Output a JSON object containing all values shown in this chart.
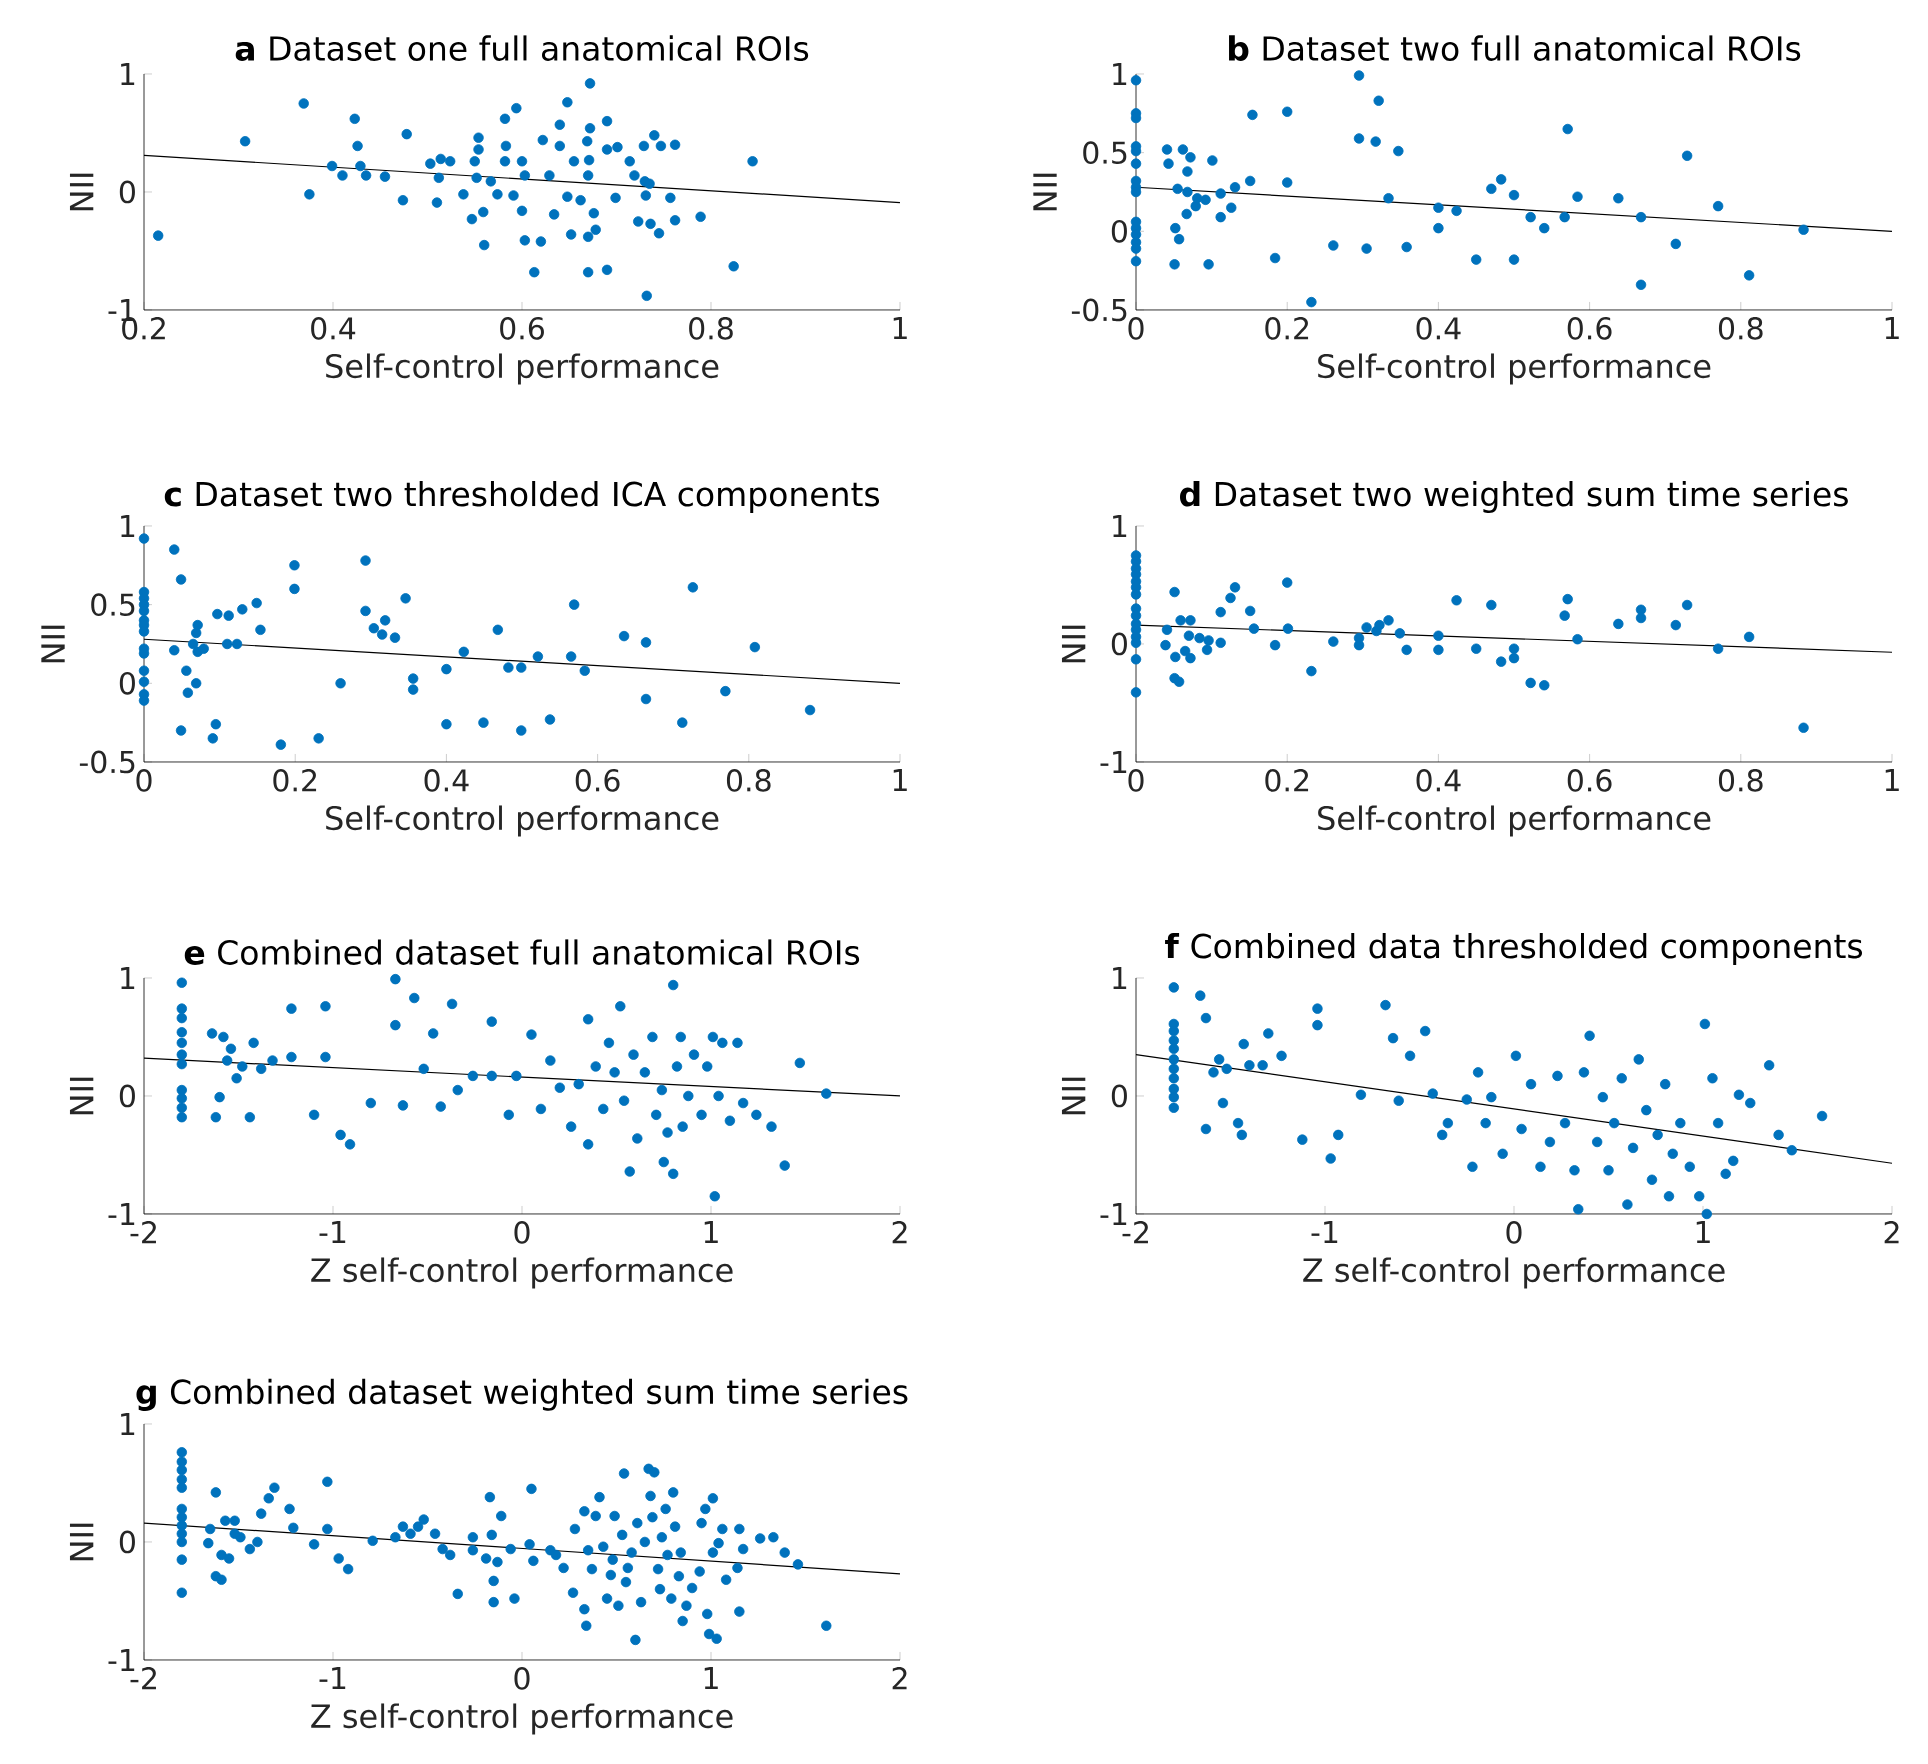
{
  "chart_data": [
    {
      "type": "scatter",
      "title": "**a** Dataset one full anatomical ROIs",
      "xlabel": "Self-control performance",
      "ylabel": "NII",
      "xlim": [
        0.2,
        1
      ],
      "ylim": [
        -1,
        1
      ],
      "xticks": [
        0.2,
        0.4,
        0.6,
        0.8,
        1
      ],
      "yticks": [
        -1,
        0,
        1
      ],
      "marker": "circle",
      "series": [
        {
          "type": "scatter",
          "color": "#0072bd",
          "x": [
            0.215,
            0.307,
            0.369,
            0.375,
            0.423,
            0.426,
            0.399,
            0.41,
            0.429,
            0.435,
            0.455,
            0.478,
            0.474,
            0.503,
            0.51,
            0.514,
            0.512,
            0.524,
            0.538,
            0.554,
            0.554,
            0.55,
            0.552,
            0.547,
            0.559,
            0.56,
            0.567,
            0.574,
            0.582,
            0.583,
            0.582,
            0.594,
            0.591,
            0.6,
            0.603,
            0.6,
            0.603,
            0.613,
            0.62,
            0.622,
            0.629,
            0.634,
            0.64,
            0.64,
            0.648,
            0.648,
            0.652,
            0.655,
            0.662,
            0.669,
            0.672,
            0.672,
            0.671,
            0.67,
            0.67,
            0.67,
            0.676,
            0.678,
            0.69,
            0.69,
            0.69,
            0.699,
            0.701,
            0.714,
            0.719,
            0.723,
            0.729,
            0.731,
            0.732,
            0.736,
            0.74,
            0.747,
            0.745,
            0.757,
            0.762,
            0.762,
            0.789,
            0.824,
            0.844,
            0.73,
            0.735
          ],
          "values": [
            -0.37,
            0.43,
            0.75,
            -0.02,
            0.62,
            0.39,
            0.22,
            0.14,
            0.22,
            0.14,
            0.13,
            0.49,
            -0.07,
            0.24,
            -0.09,
            0.28,
            0.12,
            0.26,
            -0.02,
            0.46,
            0.36,
            0.26,
            0.12,
            -0.23,
            -0.17,
            -0.45,
            0.09,
            -0.02,
            0.62,
            0.39,
            0.26,
            0.71,
            -0.03,
            0.26,
            0.14,
            -0.16,
            -0.41,
            -0.68,
            -0.42,
            0.44,
            0.14,
            -0.19,
            0.57,
            0.39,
            0.76,
            -0.04,
            -0.36,
            0.26,
            -0.07,
            0.43,
            0.92,
            0.54,
            0.27,
            0.14,
            -0.38,
            -0.68,
            -0.18,
            -0.32,
            0.6,
            0.36,
            -0.66,
            -0.05,
            0.38,
            0.26,
            0.14,
            -0.25,
            0.39,
            -0.03,
            -0.88,
            -0.27,
            0.48,
            0.39,
            -0.35,
            -0.05,
            0.4,
            -0.24,
            -0.21,
            -0.63,
            0.26,
            0.09,
            0.07
          ]
        },
        {
          "type": "line",
          "marker": "none",
          "color": "#000000",
          "x": [
            0.2,
            1
          ],
          "values": [
            0.31,
            -0.09
          ]
        }
      ]
    },
    {
      "type": "scatter",
      "title": "**b** Dataset two full anatomical ROIs",
      "xlabel": "Self-control performance",
      "ylabel": "NII",
      "xlim": [
        0,
        1
      ],
      "ylim": [
        -0.5,
        1
      ],
      "xticks": [
        0,
        0.2,
        0.4,
        0.6,
        0.8,
        1
      ],
      "yticks": [
        -0.5,
        0,
        0.5,
        1
      ],
      "marker": "circle",
      "series": [
        {
          "type": "scatter",
          "color": "#0072bd",
          "x": [
            0,
            0,
            0,
            0,
            0,
            0,
            0,
            0,
            0,
            0,
            0,
            0,
            0,
            0,
            0,
            0.041,
            0.043,
            0.052,
            0.055,
            0.057,
            0.051,
            0.062,
            0.068,
            0.072,
            0.068,
            0.067,
            0.079,
            0.081,
            0.092,
            0.096,
            0.101,
            0.112,
            0.112,
            0.126,
            0.131,
            0.151,
            0.154,
            0.184,
            0.2,
            0.2,
            0.232,
            0.261,
            0.295,
            0.295,
            0.305,
            0.317,
            0.321,
            0.334,
            0.347,
            0.358,
            0.4,
            0.4,
            0.424,
            0.45,
            0.47,
            0.483,
            0.5,
            0.5,
            0.522,
            0.54,
            0.567,
            0.571,
            0.584,
            0.638,
            0.668,
            0.668,
            0.714,
            0.729,
            0.77,
            0.811,
            0.883
          ],
          "values": [
            0.96,
            0.75,
            0.72,
            0.54,
            0.51,
            0.43,
            0.32,
            0.28,
            0.25,
            0.06,
            0.02,
            -0.02,
            -0.07,
            -0.11,
            -0.19,
            0.52,
            0.43,
            0.02,
            0.27,
            -0.05,
            -0.21,
            0.52,
            0.38,
            0.47,
            0.25,
            0.11,
            0.16,
            0.21,
            0.2,
            -0.21,
            0.45,
            0.24,
            0.09,
            0.15,
            0.28,
            0.32,
            0.74,
            -0.17,
            0.76,
            0.31,
            -0.45,
            -0.09,
            0.99,
            0.59,
            -0.11,
            0.57,
            0.83,
            0.21,
            0.51,
            -0.1,
            0.15,
            0.02,
            0.13,
            -0.18,
            0.27,
            0.33,
            0.23,
            -0.18,
            0.09,
            0.02,
            0.09,
            0.65,
            0.22,
            0.21,
            0.09,
            -0.34,
            -0.08,
            0.48,
            0.16,
            -0.28,
            0.01
          ]
        },
        {
          "type": "line",
          "marker": "none",
          "color": "#000000",
          "x": [
            0,
            1
          ],
          "values": [
            0.28,
            0.0
          ]
        }
      ]
    },
    {
      "type": "scatter",
      "title": "**c** Dataset two thresholded ICA components",
      "xlabel": "Self-control performance",
      "ylabel": "NII",
      "xlim": [
        0,
        1
      ],
      "ylim": [
        -0.5,
        1
      ],
      "xticks": [
        0,
        0.2,
        0.4,
        0.6,
        0.8,
        1
      ],
      "yticks": [
        -0.5,
        0,
        0.5,
        1
      ],
      "marker": "circle",
      "series": [
        {
          "type": "scatter",
          "color": "#0072bd",
          "x": [
            0,
            0,
            0,
            0,
            0,
            0,
            0,
            0,
            0,
            0,
            0,
            0,
            0,
            0,
            0.04,
            0.049,
            0.04,
            0.049,
            0.056,
            0.058,
            0.065,
            0.069,
            0.069,
            0.071,
            0.071,
            0.079,
            0.091,
            0.095,
            0.097,
            0.112,
            0.11,
            0.123,
            0.13,
            0.149,
            0.154,
            0.181,
            0.199,
            0.199,
            0.231,
            0.26,
            0.293,
            0.293,
            0.304,
            0.315,
            0.319,
            0.332,
            0.346,
            0.356,
            0.356,
            0.4,
            0.4,
            0.423,
            0.449,
            0.468,
            0.482,
            0.499,
            0.499,
            0.521,
            0.537,
            0.565,
            0.569,
            0.583,
            0.635,
            0.664,
            0.664,
            0.726,
            0.712,
            0.769,
            0.808,
            0.881
          ],
          "values": [
            0.92,
            0.58,
            0.54,
            0.5,
            0.46,
            0.4,
            0.37,
            0.33,
            0.22,
            0.19,
            0.08,
            0.01,
            -0.07,
            -0.11,
            0.85,
            0.66,
            0.21,
            -0.3,
            0.08,
            -0.06,
            0.25,
            0.0,
            0.32,
            0.37,
            0.2,
            0.22,
            -0.35,
            -0.26,
            0.44,
            0.43,
            0.25,
            0.25,
            0.47,
            0.51,
            0.34,
            -0.39,
            0.75,
            0.6,
            -0.35,
            0.0,
            0.78,
            0.46,
            0.35,
            0.31,
            0.4,
            0.29,
            0.54,
            0.03,
            -0.04,
            0.09,
            -0.26,
            0.2,
            -0.25,
            0.34,
            0.1,
            0.1,
            -0.3,
            0.17,
            -0.23,
            0.17,
            0.5,
            0.08,
            0.3,
            0.26,
            -0.1,
            0.61,
            -0.25,
            -0.05,
            0.23,
            -0.17
          ]
        },
        {
          "type": "line",
          "marker": "none",
          "color": "#000000",
          "x": [
            0,
            1
          ],
          "values": [
            0.28,
            0.0
          ]
        }
      ]
    },
    {
      "type": "scatter",
      "title": "**d** Dataset two weighted sum time series",
      "xlabel": "Self-control performance",
      "ylabel": "NII",
      "xlim": [
        0,
        1
      ],
      "ylim": [
        -1,
        1
      ],
      "xticks": [
        0,
        0.2,
        0.4,
        0.6,
        0.8,
        1
      ],
      "yticks": [
        -1,
        0,
        1
      ],
      "marker": "circle",
      "series": [
        {
          "type": "scatter",
          "color": "#0072bd",
          "x": [
            0,
            0,
            0,
            0,
            0,
            0,
            0,
            0,
            0,
            0,
            0,
            0,
            0,
            0,
            0,
            0.041,
            0.039,
            0.051,
            0.052,
            0.051,
            0.057,
            0.059,
            0.065,
            0.07,
            0.072,
            0.072,
            0.084,
            0.094,
            0.096,
            0.112,
            0.112,
            0.125,
            0.131,
            0.151,
            0.156,
            0.184,
            0.2,
            0.201,
            0.232,
            0.261,
            0.295,
            0.295,
            0.305,
            0.318,
            0.322,
            0.334,
            0.349,
            0.358,
            0.4,
            0.4,
            0.424,
            0.45,
            0.47,
            0.483,
            0.5,
            0.5,
            0.522,
            0.54,
            0.567,
            0.571,
            0.584,
            0.638,
            0.668,
            0.668,
            0.714,
            0.729,
            0.77,
            0.811,
            0.883
          ],
          "values": [
            0.75,
            0.7,
            0.64,
            0.59,
            0.53,
            0.48,
            0.42,
            0.3,
            0.24,
            0.17,
            0.12,
            0.06,
            0.01,
            -0.13,
            -0.41,
            0.12,
            -0.01,
            0.44,
            -0.11,
            -0.29,
            -0.32,
            0.2,
            -0.06,
            0.07,
            0.2,
            -0.12,
            0.05,
            -0.05,
            0.03,
            0.27,
            0.01,
            0.39,
            0.48,
            0.28,
            0.13,
            -0.01,
            0.52,
            0.13,
            -0.23,
            0.02,
            0.05,
            -0.01,
            0.14,
            0.11,
            0.16,
            0.2,
            0.09,
            -0.05,
            0.07,
            -0.05,
            0.37,
            -0.04,
            0.33,
            -0.15,
            -0.04,
            -0.12,
            -0.33,
            -0.35,
            0.24,
            0.38,
            0.04,
            0.17,
            0.29,
            0.22,
            0.16,
            0.33,
            -0.04,
            0.06,
            -0.71
          ]
        },
        {
          "type": "line",
          "marker": "none",
          "color": "#000000",
          "x": [
            0,
            1
          ],
          "values": [
            0.16,
            -0.07
          ]
        }
      ]
    },
    {
      "type": "scatter",
      "title": "**e** Combined dataset full anatomical ROIs",
      "xlabel": "Z self-control performance",
      "ylabel": "NII",
      "xlim": [
        -2,
        2
      ],
      "ylim": [
        -1,
        1
      ],
      "xticks": [
        -2,
        -1,
        0,
        1,
        2
      ],
      "yticks": [
        -1,
        0,
        1
      ],
      "marker": "circle",
      "series": [
        {
          "type": "scatter",
          "color": "#0072bd",
          "x": [
            -1.8,
            -1.8,
            -1.8,
            -1.8,
            -1.8,
            -1.8,
            -1.8,
            -1.8,
            -1.8,
            -1.8,
            -1.8,
            -1.64,
            -1.62,
            -1.6,
            -1.58,
            -1.56,
            -1.54,
            -1.51,
            -1.48,
            -1.44,
            -1.42,
            -1.38,
            -1.32,
            -1.22,
            -1.22,
            -1.1,
            -1.04,
            -1.04,
            -0.96,
            -0.91,
            -0.8,
            -0.67,
            -0.67,
            -0.63,
            -0.57,
            -0.52,
            -0.47,
            -0.43,
            -0.37,
            -0.34,
            -0.26,
            -0.16,
            -0.16,
            -0.07,
            -0.03,
            0.05,
            0.1,
            0.15,
            0.2,
            0.26,
            0.3,
            0.35,
            0.35,
            0.39,
            0.43,
            0.46,
            0.49,
            0.52,
            0.54,
            0.57,
            0.59,
            0.61,
            0.65,
            0.69,
            0.71,
            0.74,
            0.75,
            0.77,
            0.8,
            0.8,
            0.82,
            0.84,
            0.85,
            0.88,
            0.91,
            0.95,
            0.98,
            1.01,
            1.02,
            1.04,
            1.06,
            1.1,
            1.14,
            1.17,
            1.24,
            1.32,
            1.39,
            1.47,
            1.61
          ],
          "values": [
            0.96,
            0.74,
            0.66,
            0.54,
            0.45,
            0.35,
            0.27,
            0.05,
            -0.02,
            -0.1,
            -0.18,
            0.53,
            -0.18,
            -0.01,
            0.5,
            0.3,
            0.4,
            0.15,
            0.25,
            -0.18,
            0.45,
            0.23,
            0.3,
            0.74,
            0.33,
            -0.16,
            0.76,
            0.33,
            -0.33,
            -0.41,
            -0.06,
            0.99,
            0.6,
            -0.08,
            0.83,
            0.23,
            0.53,
            -0.09,
            0.78,
            0.05,
            0.17,
            0.63,
            0.17,
            -0.16,
            0.17,
            0.52,
            -0.11,
            0.3,
            0.07,
            -0.26,
            0.1,
            0.65,
            -0.41,
            0.25,
            -0.11,
            0.45,
            0.2,
            0.76,
            -0.04,
            -0.64,
            0.35,
            -0.36,
            0.2,
            0.5,
            -0.16,
            0.05,
            -0.56,
            -0.31,
            0.94,
            -0.66,
            0.25,
            0.5,
            -0.26,
            0.0,
            0.35,
            -0.16,
            0.25,
            0.5,
            -0.85,
            0.0,
            0.45,
            -0.21,
            0.45,
            -0.06,
            -0.16,
            -0.26,
            -0.59,
            0.28,
            0.02
          ]
        },
        {
          "type": "line",
          "marker": "none",
          "color": "#000000",
          "x": [
            -2,
            2
          ],
          "values": [
            0.32,
            0.0
          ]
        }
      ]
    },
    {
      "type": "scatter",
      "title": "**f** Combined data thresholded components",
      "xlabel": "Z self-control performance",
      "ylabel": "NII",
      "xlim": [
        -2,
        2
      ],
      "ylim": [
        -1,
        1
      ],
      "xticks": [
        -2,
        -1,
        0,
        1,
        2
      ],
      "yticks": [
        -1,
        0,
        1
      ],
      "marker": "circle",
      "series": [
        {
          "type": "scatter",
          "color": "#0072bd",
          "x": [
            -1.8,
            -1.8,
            -1.8,
            -1.8,
            -1.8,
            -1.8,
            -1.8,
            -1.8,
            -1.8,
            -1.8,
            -1.8,
            -1.66,
            -1.63,
            -1.63,
            -1.59,
            -1.56,
            -1.54,
            -1.52,
            -1.46,
            -1.44,
            -1.43,
            -1.4,
            -1.33,
            -1.3,
            -1.23,
            -1.12,
            -1.04,
            -1.04,
            -0.97,
            -0.93,
            -0.81,
            -0.68,
            -0.64,
            -0.61,
            -0.55,
            -0.47,
            -0.43,
            -0.38,
            -0.35,
            -0.25,
            -0.22,
            -0.19,
            -0.15,
            -0.12,
            -0.06,
            0.01,
            0.04,
            0.09,
            0.14,
            0.19,
            0.23,
            0.27,
            0.32,
            0.34,
            0.37,
            0.4,
            0.44,
            0.47,
            0.5,
            0.53,
            0.57,
            0.6,
            0.63,
            0.66,
            0.7,
            0.73,
            0.76,
            0.8,
            0.82,
            0.84,
            0.88,
            0.93,
            0.98,
            1.01,
            1.02,
            1.05,
            1.08,
            1.12,
            1.16,
            1.19,
            1.25,
            1.35,
            1.4,
            1.47,
            1.63
          ],
          "values": [
            0.92,
            0.61,
            0.55,
            0.47,
            0.4,
            0.31,
            0.23,
            0.15,
            0.06,
            -0.01,
            -0.1,
            0.85,
            0.66,
            -0.28,
            0.2,
            0.31,
            -0.06,
            0.23,
            -0.23,
            -0.33,
            0.44,
            0.26,
            0.26,
            0.53,
            0.34,
            -0.37,
            0.6,
            0.74,
            -0.53,
            -0.33,
            0.01,
            0.77,
            0.49,
            -0.04,
            0.34,
            0.55,
            0.02,
            -0.33,
            -0.23,
            -0.03,
            -0.6,
            0.2,
            -0.23,
            -0.01,
            -0.49,
            0.34,
            -0.28,
            0.1,
            -0.6,
            -0.39,
            0.17,
            -0.23,
            -0.63,
            -0.96,
            0.2,
            0.51,
            -0.39,
            -0.01,
            -0.63,
            -0.23,
            0.15,
            -0.92,
            -0.44,
            0.31,
            -0.12,
            -0.71,
            -0.33,
            0.1,
            -0.85,
            -0.49,
            -0.23,
            -0.6,
            -0.85,
            0.61,
            -1.0,
            0.15,
            -0.23,
            -0.66,
            -0.55,
            0.01,
            -0.06,
            0.26,
            -0.33,
            -0.46,
            -0.17
          ]
        },
        {
          "type": "line",
          "marker": "none",
          "color": "#000000",
          "x": [
            -2,
            2
          ],
          "values": [
            0.35,
            -0.57
          ]
        }
      ]
    },
    {
      "type": "scatter",
      "title": "**g** Combined dataset weighted sum time series",
      "xlabel": "Z self-control performance",
      "ylabel": "NII",
      "xlim": [
        -2,
        2
      ],
      "ylim": [
        -1,
        1
      ],
      "xticks": [
        -2,
        -1,
        0,
        1,
        2
      ],
      "yticks": [
        -1,
        0,
        1
      ],
      "marker": "circle",
      "series": [
        {
          "type": "scatter",
          "color": "#0072bd",
          "x": [
            -1.8,
            -1.8,
            -1.8,
            -1.8,
            -1.8,
            -1.8,
            -1.8,
            -1.8,
            -1.8,
            -1.8,
            -1.8,
            -1.8,
            -1.62,
            -1.65,
            -1.66,
            -1.62,
            -1.59,
            -1.59,
            -1.57,
            -1.55,
            -1.52,
            -1.52,
            -1.49,
            -1.44,
            -1.4,
            -1.38,
            -1.34,
            -1.31,
            -1.23,
            -1.21,
            -1.1,
            -1.03,
            -1.03,
            -0.97,
            -0.92,
            -0.79,
            -0.67,
            -0.63,
            -0.59,
            -0.55,
            -0.52,
            -0.46,
            -0.42,
            -0.38,
            -0.34,
            -0.26,
            -0.26,
            -0.19,
            -0.17,
            -0.16,
            -0.15,
            -0.15,
            -0.13,
            -0.11,
            -0.06,
            -0.04,
            0.04,
            0.05,
            0.06,
            0.15,
            0.18,
            0.22,
            0.27,
            0.28,
            0.33,
            0.33,
            0.34,
            0.35,
            0.37,
            0.39,
            0.41,
            0.43,
            0.45,
            0.47,
            0.48,
            0.49,
            0.51,
            0.53,
            0.54,
            0.55,
            0.56,
            0.58,
            0.6,
            0.61,
            0.63,
            0.65,
            0.67,
            0.68,
            0.69,
            0.7,
            0.72,
            0.73,
            0.74,
            0.76,
            0.77,
            0.79,
            0.8,
            0.81,
            0.83,
            0.84,
            0.85,
            0.87,
            0.9,
            0.94,
            0.95,
            0.97,
            0.98,
            0.99,
            1.01,
            1.01,
            1.03,
            1.04,
            1.06,
            1.08,
            1.14,
            1.15,
            1.15,
            1.17,
            1.26,
            1.33,
            1.39,
            1.46,
            1.61
          ],
          "values": [
            0.76,
            0.68,
            0.61,
            0.53,
            0.46,
            0.28,
            0.21,
            0.14,
            0.07,
            0.0,
            -0.15,
            -0.43,
            0.42,
            0.11,
            -0.01,
            -0.29,
            -0.32,
            -0.11,
            0.18,
            -0.14,
            0.18,
            0.07,
            0.04,
            -0.06,
            0.0,
            0.24,
            0.37,
            0.46,
            0.28,
            0.12,
            -0.02,
            0.51,
            0.11,
            -0.14,
            -0.23,
            0.01,
            0.04,
            0.13,
            0.07,
            0.13,
            0.19,
            0.07,
            -0.06,
            -0.11,
            -0.44,
            0.04,
            -0.07,
            -0.14,
            0.38,
            0.06,
            -0.33,
            -0.51,
            -0.17,
            0.22,
            -0.06,
            -0.48,
            -0.02,
            0.45,
            -0.16,
            -0.07,
            -0.11,
            -0.22,
            -0.43,
            0.11,
            0.26,
            -0.57,
            -0.71,
            -0.07,
            -0.23,
            0.22,
            0.38,
            -0.04,
            -0.48,
            -0.28,
            -0.15,
            0.22,
            -0.54,
            0.06,
            0.58,
            -0.34,
            -0.22,
            -0.09,
            -0.83,
            0.16,
            -0.51,
            0.0,
            0.62,
            0.39,
            0.21,
            0.59,
            -0.23,
            -0.4,
            0.04,
            0.28,
            -0.11,
            -0.48,
            0.42,
            0.13,
            -0.29,
            -0.09,
            -0.67,
            -0.54,
            -0.39,
            -0.25,
            0.16,
            0.28,
            -0.61,
            -0.78,
            0.37,
            -0.09,
            -0.82,
            -0.01,
            0.11,
            -0.32,
            -0.22,
            -0.59,
            0.11,
            -0.06,
            0.03,
            0.04,
            -0.09,
            -0.19,
            -0.71
          ]
        },
        {
          "type": "line",
          "marker": "none",
          "color": "#000000",
          "x": [
            -2,
            2
          ],
          "values": [
            0.16,
            -0.27
          ]
        }
      ]
    }
  ]
}
